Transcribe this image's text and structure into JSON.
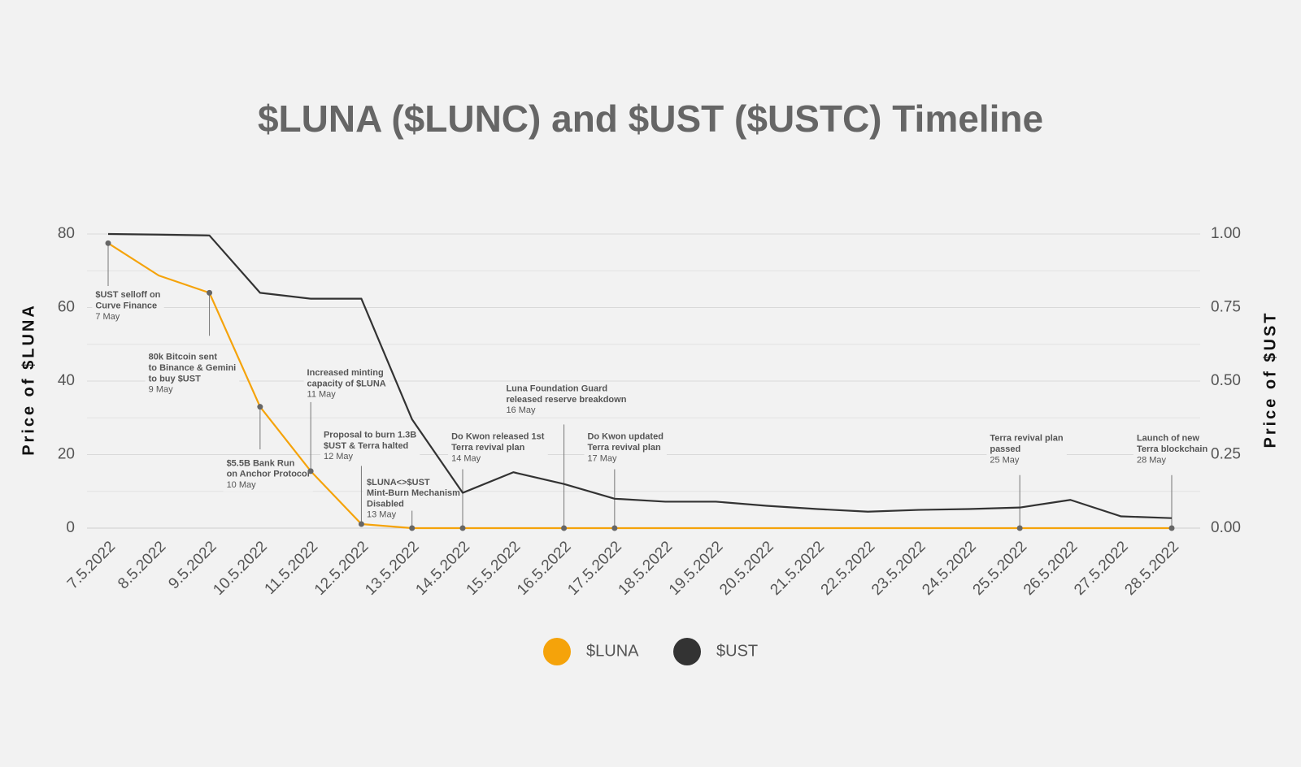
{
  "chart_data": {
    "type": "line",
    "title": "$LUNA ($LUNC) and $UST ($USTC) Timeline",
    "y_label": "Price of $LUNA",
    "y2_label": "Price of $UST",
    "categories": [
      "7.5.2022",
      "8.5.2022",
      "9.5.2022",
      "10.5.2022",
      "11.5.2022",
      "12.5.2022",
      "13.5.2022",
      "14.5.2022",
      "15.5.2022",
      "16.5.2022",
      "17.5.2022",
      "18.5.2022",
      "19.5.2022",
      "20.5.2022",
      "21.5.2022",
      "22.5.2022",
      "23.5.2022",
      "24.5.2022",
      "25.5.2022",
      "26.5.2022",
      "27.5.2022",
      "28.5.2022"
    ],
    "series": [
      {
        "name": "$LUNA",
        "color": "#f5a30a",
        "values": [
          77.5,
          68.7,
          64,
          33,
          15.5,
          1.1,
          0,
          0,
          0,
          0,
          0,
          0,
          0,
          0,
          0,
          0,
          0,
          0,
          0,
          0,
          0,
          0
        ]
      },
      {
        "name": "$UST",
        "color": "#333333",
        "axis": "y2",
        "values": [
          1.0,
          0.998,
          0.995,
          0.8,
          0.78,
          0.78,
          0.37,
          0.12,
          0.19,
          0.15,
          0.1,
          0.09,
          0.09,
          0.076,
          0.065,
          0.056,
          0.062,
          0.065,
          0.07,
          0.096,
          0.04,
          0.034
        ]
      }
    ],
    "ylim": [
      0,
      80
    ],
    "yticks": [
      0,
      20,
      40,
      60,
      80
    ],
    "y2lim": [
      0,
      1
    ],
    "y2ticks": [
      {
        "value": 0,
        "label": "0.00"
      },
      {
        "value": 0.25,
        "label": "0.25"
      },
      {
        "value": 0.5,
        "label": "0.50"
      },
      {
        "value": 0.75,
        "label": "0.75"
      },
      {
        "value": 1,
        "label": "1.00"
      }
    ],
    "grid": true,
    "legend": "bottom",
    "annotations": [
      {
        "lines": [
          "$UST selloff on",
          "Curve Finance"
        ],
        "date": "7 May"
      },
      {
        "lines": [
          "80k Bitcoin sent",
          "to Binance & Gemini",
          "to buy $UST"
        ],
        "date": "9 May"
      },
      {
        "lines": [
          "$5.5B Bank Run",
          "on Anchor Protocol"
        ],
        "date": "10 May"
      },
      {
        "lines": [
          "Increased minting",
          "capacity of $LUNA"
        ],
        "date": "11 May"
      },
      {
        "lines": [
          "Proposal to burn 1.3B",
          "$UST & Terra halted"
        ],
        "date": "12 May"
      },
      {
        "lines": [
          "$LUNA<>$UST",
          "Mint-Burn Mechanism",
          "Disabled"
        ],
        "date": "13 May"
      },
      {
        "lines": [
          "Do Kwon released 1st",
          "Terra revival plan"
        ],
        "date": "14 May"
      },
      {
        "lines": [
          "Luna Foundation Guard",
          "released reserve breakdown"
        ],
        "date": "16 May"
      },
      {
        "lines": [
          "Do Kwon updated",
          "Terra revival plan"
        ],
        "date": "17 May"
      },
      {
        "lines": [
          "Terra revival plan",
          "passed"
        ],
        "date": "25 May"
      },
      {
        "lines": [
          "Launch of new",
          "Terra blockchain"
        ],
        "date": "28 May"
      }
    ]
  }
}
